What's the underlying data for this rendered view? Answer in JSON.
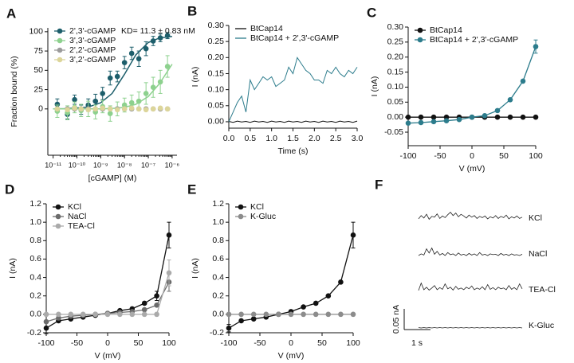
{
  "chart_data": [
    {
      "type": "scatter",
      "label": "A",
      "xlabel": "[cGAMP] (M)",
      "ylabel": "Fraction bound (%)",
      "annotation": "KD= 11.3 ± 0.83 nM",
      "xscale": "log",
      "xlim": [
        6e-12,
        1.6e-06
      ],
      "xticks": [
        {
          "value": 1e-11,
          "label": "10⁻¹¹"
        },
        {
          "value": 1e-10,
          "label": "10⁻¹⁰"
        },
        {
          "value": 1e-09,
          "label": "10⁻⁹"
        },
        {
          "value": 1e-08,
          "label": "10⁻⁸"
        },
        {
          "value": 1e-07,
          "label": "10⁻⁷"
        },
        {
          "value": 1e-06,
          "label": "10⁻⁶"
        }
      ],
      "ylim": [
        -60,
        105
      ],
      "yticks": [
        0,
        25,
        50,
        75,
        100
      ],
      "legend": "upper left",
      "x": [
        1.5e-11,
        4e-11,
        8e-11,
        1.5e-10,
        3e-10,
        6e-10,
        1.2e-09,
        2.5e-09,
        5e-09,
        1e-08,
        2e-08,
        4e-08,
        8e-08,
        1.6e-07,
        3.2e-07,
        6.4e-07
      ],
      "series": [
        {
          "name": "2',3'-cGAMP",
          "color": "#1d5e6b",
          "values": [
            6,
            -7,
            12,
            -1,
            5,
            10,
            20,
            40,
            42,
            60,
            72,
            65,
            78,
            88,
            92,
            95
          ],
          "errors": [
            7,
            6,
            6,
            6,
            8,
            9,
            8,
            9,
            7,
            8,
            8,
            10,
            9,
            6,
            5,
            4
          ],
          "fit_x": [
            1e-11,
            3e-11,
            1e-10,
            3e-10,
            1e-09,
            3e-09,
            1e-08,
            3e-08,
            1e-07,
            3e-07,
            1e-06
          ],
          "fit_values": [
            0.1,
            0.3,
            1,
            2.5,
            8,
            20,
            45,
            70,
            86,
            92,
            94
          ]
        },
        {
          "name": "3',3'-cGAMP",
          "color": "#8dd18e",
          "values": [
            -3,
            -5,
            2,
            -2,
            0,
            -4,
            3,
            -6,
            0,
            5,
            8,
            10,
            20,
            28,
            35,
            55
          ],
          "errors": [
            8,
            9,
            7,
            8,
            10,
            9,
            8,
            10,
            9,
            9,
            10,
            12,
            14,
            13,
            15,
            14
          ],
          "fit_x": [
            1e-11,
            3e-11,
            1e-10,
            3e-10,
            1e-09,
            3e-09,
            1e-08,
            3e-08,
            1e-07,
            3e-07,
            1e-06
          ],
          "fit_values": [
            0,
            0,
            0,
            0,
            0,
            0.5,
            2,
            6,
            16,
            33,
            58
          ]
        },
        {
          "name": "2',2'-cGAMP",
          "color": "#9b9b9b",
          "values": [
            0,
            0,
            0,
            0,
            0,
            0,
            0,
            0,
            0,
            0,
            0,
            0,
            0,
            0,
            0,
            0
          ]
        },
        {
          "name": "3',2'-cGAMP",
          "color": "#dcd59a",
          "values": [
            0,
            -1,
            1,
            0,
            -1,
            0,
            1,
            0,
            -1,
            0,
            1,
            0,
            -1,
            0,
            1,
            0
          ]
        }
      ]
    },
    {
      "type": "line",
      "label": "B",
      "xlabel": "Time (s)",
      "ylabel": "I (nA)",
      "xlim": [
        0,
        3
      ],
      "xticks": [
        {
          "value": 0,
          "label": "0.0"
        },
        0.5,
        {
          "value": 1,
          "label": "1.0"
        },
        1.5,
        {
          "value": 2,
          "label": "2.0"
        },
        2.5,
        {
          "value": 3,
          "label": "3.0"
        }
      ],
      "ylim": [
        -0.02,
        0.3
      ],
      "yticks": [
        {
          "value": 0,
          "label": "0.00"
        },
        0.05,
        {
          "value": 0.1,
          "label": "0.10"
        },
        0.15,
        {
          "value": 0.2,
          "label": "0.20"
        },
        0.25,
        {
          "value": 0.3,
          "label": "0.30"
        }
      ],
      "legend": "upper left",
      "x": [
        0,
        0.1,
        0.2,
        0.3,
        0.4,
        0.5,
        0.6,
        0.7,
        0.8,
        0.9,
        1.0,
        1.1,
        1.2,
        1.3,
        1.4,
        1.5,
        1.6,
        1.7,
        1.8,
        1.9,
        2.0,
        2.1,
        2.2,
        2.3,
        2.4,
        2.5,
        2.6,
        2.7,
        2.8,
        2.9,
        3.0
      ],
      "series": [
        {
          "name": "BtCap14",
          "color": "#111111",
          "values": [
            0.001,
            -0.002,
            0.002,
            -0.001,
            0.001,
            -0.002,
            0.002,
            -0.001,
            0.001,
            -0.002,
            0.002,
            -0.001,
            0.001,
            -0.002,
            0.002,
            -0.001,
            0.001,
            -0.002,
            0.002,
            -0.001,
            0.001,
            -0.002,
            0.002,
            -0.001,
            0.001,
            -0.002,
            0.002,
            -0.001,
            0.001,
            -0.002,
            0.002
          ]
        },
        {
          "name": "BtCap14 + 2',3'-cGAMP",
          "color": "#2c7c8c",
          "values": [
            0.0,
            0.03,
            0.06,
            0.08,
            0.03,
            0.13,
            0.1,
            0.12,
            0.14,
            0.13,
            0.14,
            0.11,
            0.12,
            0.13,
            0.17,
            0.15,
            0.2,
            0.18,
            0.16,
            0.15,
            0.13,
            0.13,
            0.12,
            0.16,
            0.15,
            0.17,
            0.15,
            0.14,
            0.16,
            0.15,
            0.17
          ]
        }
      ]
    },
    {
      "type": "line",
      "label": "C",
      "xlabel": "V (mV)",
      "ylabel": "I (nA)",
      "markers": true,
      "xlim": [
        -100,
        100
      ],
      "xticks": [
        -100,
        -50,
        0,
        50,
        100
      ],
      "ylim": [
        -0.095,
        0.3
      ],
      "yticks": [
        -0.05,
        {
          "value": 0,
          "label": "0.00"
        },
        0.05,
        {
          "value": 0.1,
          "label": "0.10"
        },
        0.15,
        {
          "value": 0.2,
          "label": "0.20"
        },
        0.25,
        {
          "value": 0.3,
          "label": "0.30"
        }
      ],
      "legend": "upper left",
      "x": [
        -100,
        -80,
        -60,
        -40,
        -20,
        0,
        20,
        40,
        60,
        80,
        100
      ],
      "series": [
        {
          "name": "BtCap14",
          "color": "#111111",
          "values": [
            0,
            0,
            0,
            0,
            0,
            0,
            0,
            0,
            0,
            0,
            0
          ]
        },
        {
          "name": "BtCap14 + 2',3'-cGAMP",
          "color": "#2c7c8c",
          "values": [
            -0.02,
            -0.018,
            -0.015,
            -0.012,
            -0.008,
            0,
            0.005,
            0.022,
            0.058,
            0.12,
            0.235
          ],
          "errors": [
            null,
            null,
            null,
            null,
            null,
            null,
            null,
            null,
            null,
            null,
            0.022
          ]
        }
      ]
    },
    {
      "type": "line",
      "label": "D",
      "xlabel": "V (mV)",
      "ylabel": "I (nA)",
      "markers": true,
      "xlim": [
        -100,
        100
      ],
      "xticks": [
        -100,
        -50,
        0,
        50,
        100
      ],
      "ylim": [
        -0.2,
        1.2
      ],
      "yticks": [
        -0.2,
        {
          "value": 0,
          "label": "0.0"
        },
        0.2,
        0.4,
        0.6,
        0.8,
        {
          "value": 1,
          "label": "1.0"
        },
        1.2
      ],
      "legend": "upper left",
      "x": [
        -100,
        -80,
        -60,
        -40,
        -20,
        0,
        20,
        40,
        60,
        80,
        100
      ],
      "series": [
        {
          "name": "KCl",
          "color": "#111111",
          "values": [
            -0.15,
            -0.07,
            -0.05,
            -0.03,
            -0.01,
            0.01,
            0.04,
            0.06,
            0.12,
            0.2,
            0.86
          ],
          "errors": [
            0.06,
            null,
            null,
            null,
            null,
            null,
            null,
            null,
            null,
            0.05,
            0.14
          ]
        },
        {
          "name": "NaCl",
          "color": "#6b6b6b",
          "values": [
            -0.08,
            -0.04,
            -0.02,
            -0.01,
            0,
            0.01,
            0.02,
            0.03,
            0.05,
            0.1,
            0.35
          ],
          "errors": [
            null,
            null,
            null,
            null,
            null,
            null,
            null,
            null,
            null,
            null,
            0.1
          ]
        },
        {
          "name": "TEA-Cl",
          "color": "#aaaaaa",
          "values": [
            0,
            0,
            0,
            0,
            0,
            0,
            0,
            0,
            0,
            0,
            0.45
          ],
          "errors": [
            null,
            null,
            null,
            null,
            null,
            null,
            null,
            null,
            null,
            null,
            0.14
          ]
        }
      ]
    },
    {
      "type": "line",
      "label": "E",
      "xlabel": "V (mV)",
      "ylabel": "I (nA)",
      "markers": true,
      "xlim": [
        -100,
        100
      ],
      "xticks": [
        -100,
        -50,
        0,
        50,
        100
      ],
      "ylim": [
        -0.2,
        1.2
      ],
      "yticks": [
        -0.2,
        {
          "value": 0,
          "label": "0.0"
        },
        0.2,
        0.4,
        0.6,
        0.8,
        {
          "value": 1,
          "label": "1.0"
        },
        1.2
      ],
      "legend": "upper left",
      "x": [
        -100,
        -80,
        -60,
        -40,
        -20,
        0,
        20,
        40,
        60,
        80,
        100
      ],
      "series": [
        {
          "name": "KCl",
          "color": "#111111",
          "values": [
            -0.15,
            -0.07,
            -0.05,
            -0.03,
            0,
            0.03,
            0.08,
            0.12,
            0.2,
            0.35,
            0.86
          ],
          "errors": [
            0.04,
            null,
            null,
            null,
            null,
            null,
            null,
            null,
            null,
            null,
            0.14
          ]
        },
        {
          "name": "K-Gluc",
          "color": "#8c8c8c",
          "values": [
            0,
            0,
            0,
            0,
            0,
            0,
            0,
            0,
            0,
            0,
            0
          ]
        }
      ]
    },
    {
      "type": "trace",
      "label": "F",
      "scale_y": "0.05 nA",
      "scale_x": "1 s",
      "series": [
        {
          "name": "KCl",
          "color": "#222222",
          "values": [
            0.004,
            0.012,
            0.006,
            0.015,
            0.003,
            0.01,
            0.008,
            0.016,
            0.005,
            0.011,
            0.007,
            0.014,
            0.02,
            0.012,
            0.018,
            0.009,
            0.015,
            0.011,
            0.006,
            0.013,
            0.008,
            0.012,
            0.005,
            0.01,
            0.007,
            0.011,
            0.004,
            0.009,
            0.006,
            0.012,
            0.005,
            0.01,
            0.007,
            0.013,
            0.004,
            0.009,
            0.006,
            0.011,
            0.005,
            0.008
          ]
        },
        {
          "name": "NaCl",
          "color": "#222222",
          "values": [
            0.002,
            0.006,
            0.003,
            0.018,
            0.008,
            0.02,
            0.005,
            0.012,
            0.003,
            0.007,
            0.002,
            0.009,
            0.004,
            0.006,
            0.002,
            0.008,
            0.003,
            0.005,
            0.002,
            0.007,
            0.003,
            0.006,
            0.002,
            0.009,
            0.003,
            0.005,
            0.002,
            0.006,
            0.004,
            0.005,
            0.002,
            0.007,
            0.003,
            0.005,
            0.002,
            0.006,
            0.003,
            0.004,
            0.002,
            0.005
          ]
        },
        {
          "name": "TEA-Cl",
          "color": "#222222",
          "values": [
            0.004,
            0.022,
            0.006,
            0.012,
            0.005,
            0.01,
            0.016,
            0.006,
            0.011,
            0.007,
            0.02,
            0.008,
            0.012,
            0.005,
            0.014,
            0.007,
            0.01,
            0.006,
            0.012,
            0.008,
            0.015,
            0.006,
            0.01,
            0.007,
            0.013,
            0.006,
            0.018,
            0.007,
            0.011,
            0.006,
            0.012,
            0.008,
            0.01,
            0.006,
            0.016,
            0.007,
            0.011,
            0.006,
            0.02,
            0.008
          ]
        },
        {
          "name": "K-Gluc",
          "color": "#222222",
          "values": [
            0.001,
            0,
            0.001,
            0,
            0.001,
            0,
            0.001,
            0,
            0.001,
            0,
            0.001,
            0,
            0.001,
            0,
            0.001,
            0,
            0.001,
            0,
            0.001,
            0,
            0.001,
            0,
            0.001,
            0,
            0.001,
            0,
            0.001,
            0,
            0.001,
            0,
            0.001,
            0,
            0.001,
            0,
            0.001,
            0,
            0.001,
            0,
            0.001,
            0
          ]
        }
      ]
    }
  ]
}
